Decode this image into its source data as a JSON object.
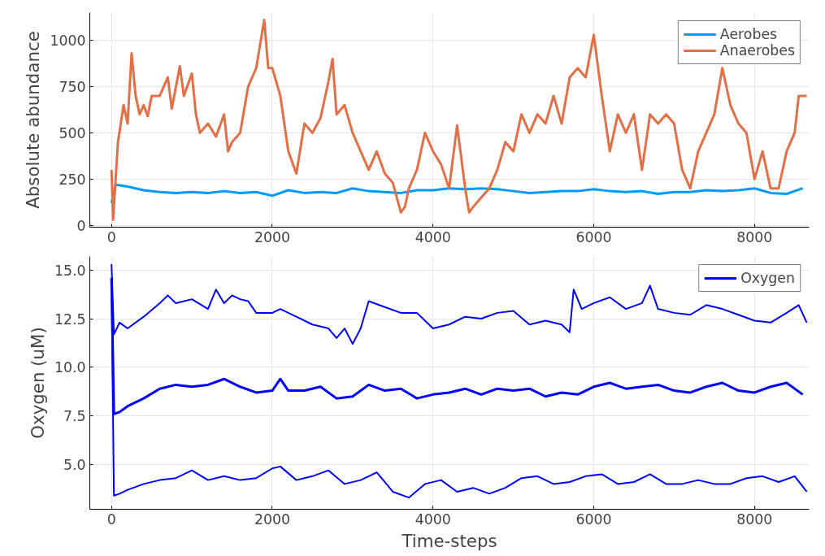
{
  "chart_data": [
    {
      "type": "line",
      "ylabel": "Absolute abundance",
      "xlim": [
        -270,
        8680
      ],
      "ylim": [
        -10,
        1150
      ],
      "xticks": [
        0,
        2000,
        4000,
        6000,
        8000
      ],
      "yticks": [
        0,
        250,
        500,
        750,
        1000
      ],
      "grid": true,
      "legend": "top right",
      "series": [
        {
          "name": "Aerobes",
          "color": "#009af9",
          "x": [
            0,
            50,
            200,
            400,
            600,
            800,
            1000,
            1200,
            1400,
            1600,
            1800,
            2000,
            2200,
            2400,
            2600,
            2800,
            3000,
            3200,
            3400,
            3600,
            3800,
            4000,
            4200,
            4400,
            4600,
            4800,
            5000,
            5200,
            5400,
            5600,
            5800,
            6000,
            6200,
            6400,
            6600,
            6800,
            7000,
            7200,
            7400,
            7600,
            7800,
            8000,
            8200,
            8400,
            8600
          ],
          "values": [
            120,
            220,
            210,
            190,
            180,
            175,
            180,
            175,
            185,
            175,
            180,
            160,
            190,
            175,
            180,
            175,
            200,
            185,
            180,
            175,
            190,
            190,
            200,
            195,
            200,
            195,
            185,
            175,
            180,
            185,
            185,
            195,
            185,
            180,
            185,
            170,
            180,
            180,
            190,
            185,
            190,
            200,
            175,
            170,
            200
          ]
        },
        {
          "name": "Anaerobes",
          "color": "#e26f46",
          "x": [
            0,
            20,
            80,
            150,
            200,
            250,
            300,
            350,
            400,
            450,
            500,
            600,
            700,
            750,
            850,
            900,
            1000,
            1050,
            1100,
            1200,
            1300,
            1400,
            1450,
            1500,
            1600,
            1700,
            1800,
            1900,
            1950,
            2000,
            2100,
            2200,
            2300,
            2400,
            2500,
            2600,
            2700,
            2750,
            2800,
            2900,
            3000,
            3100,
            3200,
            3300,
            3400,
            3500,
            3600,
            3650,
            3700,
            3800,
            3900,
            4000,
            4100,
            4200,
            4300,
            4400,
            4450,
            4500,
            4600,
            4700,
            4800,
            4900,
            5000,
            5100,
            5200,
            5300,
            5400,
            5500,
            5600,
            5700,
            5800,
            5900,
            6000,
            6100,
            6200,
            6300,
            6400,
            6500,
            6600,
            6700,
            6800,
            6900,
            7000,
            7100,
            7200,
            7300,
            7400,
            7500,
            7600,
            7700,
            7800,
            7900,
            8000,
            8100,
            8200,
            8300,
            8400,
            8500,
            8550,
            8650
          ],
          "values": [
            300,
            30,
            450,
            650,
            550,
            930,
            700,
            600,
            650,
            590,
            700,
            700,
            800,
            630,
            860,
            700,
            820,
            600,
            500,
            550,
            480,
            600,
            400,
            450,
            500,
            750,
            850,
            1110,
            850,
            850,
            700,
            400,
            280,
            550,
            500,
            580,
            780,
            900,
            600,
            650,
            500,
            400,
            300,
            400,
            280,
            230,
            70,
            100,
            200,
            300,
            500,
            400,
            330,
            200,
            540,
            200,
            70,
            100,
            150,
            200,
            300,
            450,
            400,
            600,
            500,
            600,
            550,
            700,
            550,
            800,
            850,
            800,
            1030,
            700,
            400,
            600,
            500,
            600,
            300,
            600,
            550,
            600,
            550,
            300,
            200,
            400,
            500,
            600,
            850,
            650,
            550,
            500,
            250,
            400,
            200,
            200,
            400,
            500,
            700,
            700
          ]
        }
      ]
    },
    {
      "type": "line",
      "xlabel": "Time-steps",
      "ylabel": "Oxygen (uM)",
      "xlim": [
        -270,
        8680
      ],
      "ylim": [
        2.7,
        15.7
      ],
      "xticks": [
        0,
        2000,
        4000,
        6000,
        8000
      ],
      "yticks": [
        {
          "value": 5,
          "label": "5.0"
        },
        {
          "value": 7.5,
          "label": "7.5"
        },
        {
          "value": 10,
          "label": "10.0"
        },
        {
          "value": 12.5,
          "label": "12.5"
        },
        {
          "value": 15,
          "label": "15.0"
        }
      ],
      "grid": true,
      "legend": "top right",
      "series": [
        {
          "color": "#0000ff",
          "x": [
            0,
            30,
            100,
            200,
            400,
            600,
            700,
            800,
            1000,
            1200,
            1300,
            1400,
            1500,
            1600,
            1700,
            1800,
            2000,
            2100,
            2300,
            2500,
            2700,
            2800,
            2900,
            3000,
            3100,
            3200,
            3400,
            3600,
            3800,
            4000,
            4200,
            4400,
            4600,
            4800,
            5000,
            5200,
            5400,
            5600,
            5700,
            5750,
            5850,
            6000,
            6200,
            6400,
            6600,
            6700,
            6800,
            7000,
            7200,
            7400,
            7600,
            7800,
            8000,
            8200,
            8400,
            8550,
            8650
          ],
          "values": [
            15.3,
            11.7,
            12.3,
            12.0,
            12.6,
            13.3,
            13.7,
            13.3,
            13.5,
            13.0,
            14.0,
            13.3,
            13.7,
            13.5,
            13.4,
            12.8,
            12.8,
            13.0,
            12.6,
            12.2,
            12.0,
            11.5,
            12.0,
            11.2,
            12.0,
            13.4,
            13.1,
            12.8,
            12.8,
            12.0,
            12.2,
            12.6,
            12.5,
            12.8,
            12.9,
            12.2,
            12.4,
            12.2,
            11.8,
            14.0,
            13.0,
            13.3,
            13.6,
            13.0,
            13.3,
            14.2,
            13.0,
            12.8,
            12.7,
            13.2,
            13.0,
            12.7,
            12.4,
            12.3,
            12.8,
            13.2,
            12.3
          ]
        },
        {
          "name": "Oxygen",
          "color": "#0000ff",
          "x": [
            0,
            30,
            100,
            200,
            400,
            600,
            800,
            1000,
            1200,
            1400,
            1600,
            1800,
            2000,
            2100,
            2200,
            2400,
            2600,
            2800,
            3000,
            3200,
            3400,
            3600,
            3800,
            4000,
            4200,
            4400,
            4600,
            4800,
            5000,
            5200,
            5400,
            5600,
            5800,
            6000,
            6200,
            6400,
            6600,
            6800,
            7000,
            7200,
            7400,
            7600,
            7800,
            8000,
            8200,
            8400,
            8600
          ],
          "values": [
            14.6,
            7.6,
            7.7,
            8.0,
            8.4,
            8.9,
            9.1,
            9.0,
            9.1,
            9.4,
            9.0,
            8.7,
            8.8,
            9.4,
            8.8,
            8.8,
            9.0,
            8.4,
            8.5,
            9.1,
            8.8,
            8.9,
            8.4,
            8.6,
            8.7,
            8.9,
            8.6,
            8.9,
            8.8,
            8.9,
            8.5,
            8.7,
            8.6,
            9.0,
            9.2,
            8.9,
            9.0,
            9.1,
            8.8,
            8.7,
            9.0,
            9.2,
            8.8,
            8.7,
            9.0,
            9.2,
            8.6
          ]
        },
        {
          "color": "#0000ff",
          "x": [
            0,
            30,
            100,
            200,
            400,
            600,
            800,
            1000,
            1200,
            1400,
            1600,
            1800,
            2000,
            2100,
            2300,
            2500,
            2700,
            2900,
            3100,
            3300,
            3500,
            3700,
            3900,
            4100,
            4300,
            4500,
            4700,
            4900,
            5100,
            5300,
            5500,
            5700,
            5900,
            6100,
            6300,
            6500,
            6700,
            6900,
            7100,
            7300,
            7500,
            7700,
            7900,
            8100,
            8300,
            8500,
            8650
          ],
          "values": [
            14.5,
            3.4,
            3.5,
            3.7,
            4.0,
            4.2,
            4.3,
            4.7,
            4.2,
            4.4,
            4.2,
            4.3,
            4.8,
            4.9,
            4.2,
            4.4,
            4.7,
            4.0,
            4.2,
            4.6,
            3.6,
            3.3,
            4.0,
            4.2,
            3.6,
            3.8,
            3.5,
            3.8,
            4.3,
            4.4,
            4.0,
            4.1,
            4.4,
            4.5,
            4.0,
            4.1,
            4.5,
            4.0,
            4.0,
            4.2,
            4.0,
            4.0,
            4.3,
            4.4,
            4.1,
            4.4,
            3.6
          ]
        }
      ]
    }
  ]
}
